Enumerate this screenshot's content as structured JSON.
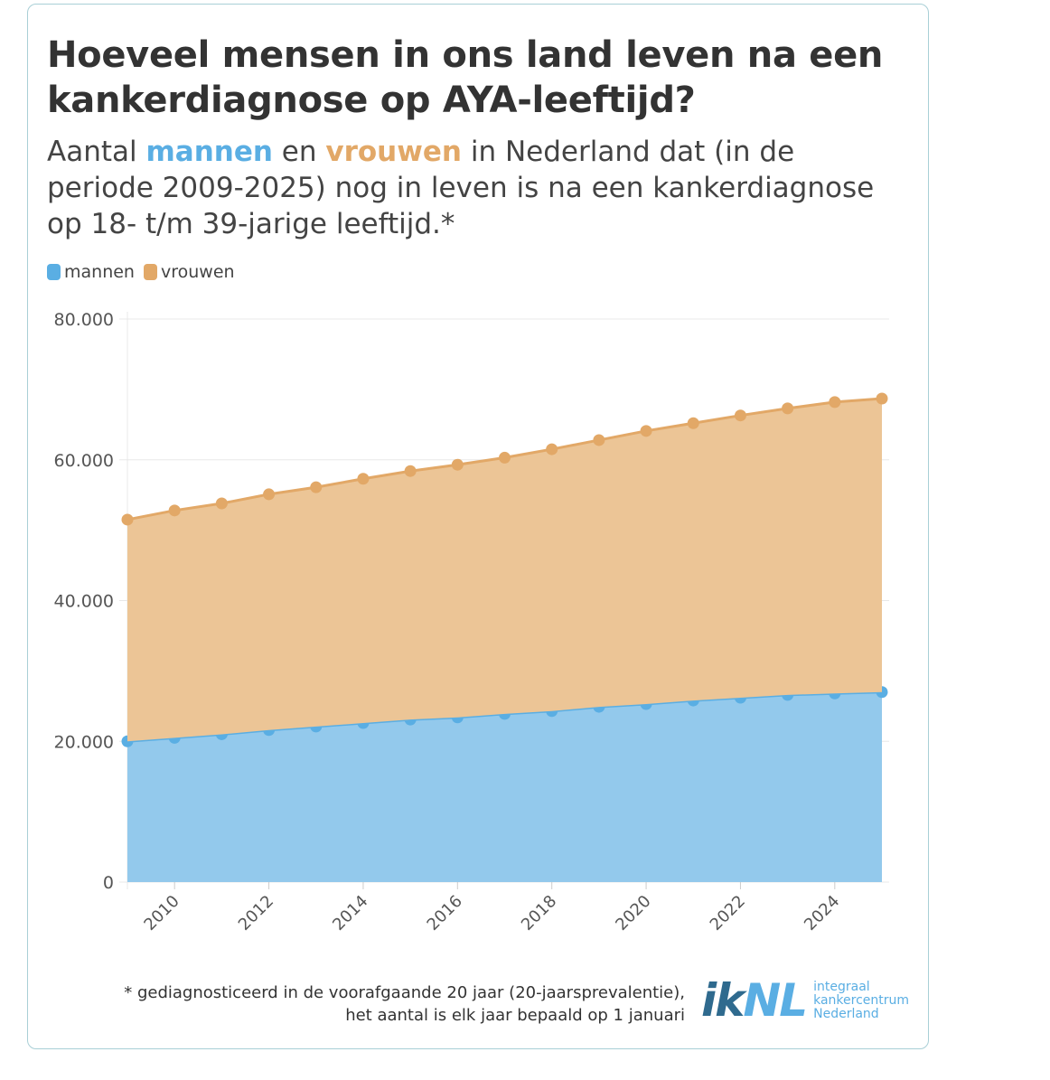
{
  "title": "Hoeveel mensen in ons land leven na een kankerdiagnose op AYA-leeftijd?",
  "subtitle": {
    "pre": "Aantal ",
    "men": "mannen",
    "mid": " en ",
    "women": "vrouwen",
    "post": " in Nederland dat (in de periode 2009-2025) nog in leven is na een kankerdiagnose op 18- t/m 39-jarige leeftijd.*"
  },
  "footnote": {
    "line1": "* gediagnosticeerd in de voorafgaande 20 jaar (20-jaarsprevalentie),",
    "line2": "het aantal is elk jaar bepaald op 1 januari"
  },
  "logo": {
    "mark": "IKNL",
    "line1": "integraal",
    "line2": "kankercentrum",
    "line3": "Nederland"
  },
  "chart_data": {
    "type": "area",
    "stacked": true,
    "x": [
      2009,
      2010,
      2011,
      2012,
      2013,
      2014,
      2015,
      2016,
      2017,
      2018,
      2019,
      2020,
      2021,
      2022,
      2023,
      2024,
      2025
    ],
    "series": [
      {
        "name": "mannen",
        "color": "#5aaee3",
        "fill": "#93c9ec",
        "values": [
          20000,
          20500,
          21000,
          21600,
          22100,
          22600,
          23100,
          23400,
          23900,
          24300,
          24900,
          25300,
          25800,
          26200,
          26600,
          26800,
          27000
        ]
      },
      {
        "name": "vrouwen",
        "color": "#e2a867",
        "fill": "#ecc596",
        "values": [
          31500,
          32300,
          32800,
          33500,
          34000,
          34700,
          35300,
          35900,
          36400,
          37200,
          37900,
          38800,
          39400,
          40100,
          40700,
          41400,
          41700
        ]
      }
    ],
    "ylim": [
      0,
      80000
    ],
    "yticks": [
      0,
      20000,
      40000,
      60000,
      80000
    ],
    "ytick_labels": [
      "0",
      "20.000",
      "40.000",
      "60.000",
      "80.000"
    ],
    "xticks": [
      2010,
      2012,
      2014,
      2016,
      2018,
      2020,
      2022,
      2024
    ],
    "xtick_labels": [
      "2010",
      "2012",
      "2014",
      "2016",
      "2018",
      "2020",
      "2022",
      "2024"
    ],
    "legend": [
      "mannen",
      "vrouwen"
    ],
    "legend_position": "top-left",
    "grid": true
  }
}
